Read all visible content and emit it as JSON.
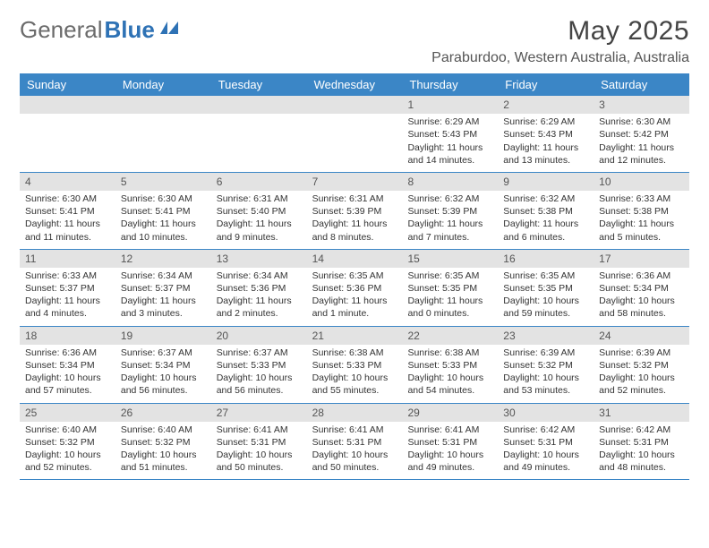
{
  "brand": {
    "textGray": "General",
    "textBlue": "Blue"
  },
  "title": "May 2025",
  "location": "Paraburdoo, Western Australia, Australia",
  "colors": {
    "headerBlue": "#3b86c6",
    "dayBarGray": "#e3e3e3",
    "borderBlue": "#3b86c6",
    "logoBlue": "#2e72b5",
    "logoGray": "#6b6b6b",
    "textDark": "#333333"
  },
  "dayNames": [
    "Sunday",
    "Monday",
    "Tuesday",
    "Wednesday",
    "Thursday",
    "Friday",
    "Saturday"
  ],
  "weeks": [
    [
      {
        "empty": true
      },
      {
        "empty": true
      },
      {
        "empty": true
      },
      {
        "empty": true
      },
      {
        "num": "1",
        "sunrise": "Sunrise: 6:29 AM",
        "sunset": "Sunset: 5:43 PM",
        "daylight": "Daylight: 11 hours and 14 minutes."
      },
      {
        "num": "2",
        "sunrise": "Sunrise: 6:29 AM",
        "sunset": "Sunset: 5:43 PM",
        "daylight": "Daylight: 11 hours and 13 minutes."
      },
      {
        "num": "3",
        "sunrise": "Sunrise: 6:30 AM",
        "sunset": "Sunset: 5:42 PM",
        "daylight": "Daylight: 11 hours and 12 minutes."
      }
    ],
    [
      {
        "num": "4",
        "sunrise": "Sunrise: 6:30 AM",
        "sunset": "Sunset: 5:41 PM",
        "daylight": "Daylight: 11 hours and 11 minutes."
      },
      {
        "num": "5",
        "sunrise": "Sunrise: 6:30 AM",
        "sunset": "Sunset: 5:41 PM",
        "daylight": "Daylight: 11 hours and 10 minutes."
      },
      {
        "num": "6",
        "sunrise": "Sunrise: 6:31 AM",
        "sunset": "Sunset: 5:40 PM",
        "daylight": "Daylight: 11 hours and 9 minutes."
      },
      {
        "num": "7",
        "sunrise": "Sunrise: 6:31 AM",
        "sunset": "Sunset: 5:39 PM",
        "daylight": "Daylight: 11 hours and 8 minutes."
      },
      {
        "num": "8",
        "sunrise": "Sunrise: 6:32 AM",
        "sunset": "Sunset: 5:39 PM",
        "daylight": "Daylight: 11 hours and 7 minutes."
      },
      {
        "num": "9",
        "sunrise": "Sunrise: 6:32 AM",
        "sunset": "Sunset: 5:38 PM",
        "daylight": "Daylight: 11 hours and 6 minutes."
      },
      {
        "num": "10",
        "sunrise": "Sunrise: 6:33 AM",
        "sunset": "Sunset: 5:38 PM",
        "daylight": "Daylight: 11 hours and 5 minutes."
      }
    ],
    [
      {
        "num": "11",
        "sunrise": "Sunrise: 6:33 AM",
        "sunset": "Sunset: 5:37 PM",
        "daylight": "Daylight: 11 hours and 4 minutes."
      },
      {
        "num": "12",
        "sunrise": "Sunrise: 6:34 AM",
        "sunset": "Sunset: 5:37 PM",
        "daylight": "Daylight: 11 hours and 3 minutes."
      },
      {
        "num": "13",
        "sunrise": "Sunrise: 6:34 AM",
        "sunset": "Sunset: 5:36 PM",
        "daylight": "Daylight: 11 hours and 2 minutes."
      },
      {
        "num": "14",
        "sunrise": "Sunrise: 6:35 AM",
        "sunset": "Sunset: 5:36 PM",
        "daylight": "Daylight: 11 hours and 1 minute."
      },
      {
        "num": "15",
        "sunrise": "Sunrise: 6:35 AM",
        "sunset": "Sunset: 5:35 PM",
        "daylight": "Daylight: 11 hours and 0 minutes."
      },
      {
        "num": "16",
        "sunrise": "Sunrise: 6:35 AM",
        "sunset": "Sunset: 5:35 PM",
        "daylight": "Daylight: 10 hours and 59 minutes."
      },
      {
        "num": "17",
        "sunrise": "Sunrise: 6:36 AM",
        "sunset": "Sunset: 5:34 PM",
        "daylight": "Daylight: 10 hours and 58 minutes."
      }
    ],
    [
      {
        "num": "18",
        "sunrise": "Sunrise: 6:36 AM",
        "sunset": "Sunset: 5:34 PM",
        "daylight": "Daylight: 10 hours and 57 minutes."
      },
      {
        "num": "19",
        "sunrise": "Sunrise: 6:37 AM",
        "sunset": "Sunset: 5:34 PM",
        "daylight": "Daylight: 10 hours and 56 minutes."
      },
      {
        "num": "20",
        "sunrise": "Sunrise: 6:37 AM",
        "sunset": "Sunset: 5:33 PM",
        "daylight": "Daylight: 10 hours and 56 minutes."
      },
      {
        "num": "21",
        "sunrise": "Sunrise: 6:38 AM",
        "sunset": "Sunset: 5:33 PM",
        "daylight": "Daylight: 10 hours and 55 minutes."
      },
      {
        "num": "22",
        "sunrise": "Sunrise: 6:38 AM",
        "sunset": "Sunset: 5:33 PM",
        "daylight": "Daylight: 10 hours and 54 minutes."
      },
      {
        "num": "23",
        "sunrise": "Sunrise: 6:39 AM",
        "sunset": "Sunset: 5:32 PM",
        "daylight": "Daylight: 10 hours and 53 minutes."
      },
      {
        "num": "24",
        "sunrise": "Sunrise: 6:39 AM",
        "sunset": "Sunset: 5:32 PM",
        "daylight": "Daylight: 10 hours and 52 minutes."
      }
    ],
    [
      {
        "num": "25",
        "sunrise": "Sunrise: 6:40 AM",
        "sunset": "Sunset: 5:32 PM",
        "daylight": "Daylight: 10 hours and 52 minutes."
      },
      {
        "num": "26",
        "sunrise": "Sunrise: 6:40 AM",
        "sunset": "Sunset: 5:32 PM",
        "daylight": "Daylight: 10 hours and 51 minutes."
      },
      {
        "num": "27",
        "sunrise": "Sunrise: 6:41 AM",
        "sunset": "Sunset: 5:31 PM",
        "daylight": "Daylight: 10 hours and 50 minutes."
      },
      {
        "num": "28",
        "sunrise": "Sunrise: 6:41 AM",
        "sunset": "Sunset: 5:31 PM",
        "daylight": "Daylight: 10 hours and 50 minutes."
      },
      {
        "num": "29",
        "sunrise": "Sunrise: 6:41 AM",
        "sunset": "Sunset: 5:31 PM",
        "daylight": "Daylight: 10 hours and 49 minutes."
      },
      {
        "num": "30",
        "sunrise": "Sunrise: 6:42 AM",
        "sunset": "Sunset: 5:31 PM",
        "daylight": "Daylight: 10 hours and 49 minutes."
      },
      {
        "num": "31",
        "sunrise": "Sunrise: 6:42 AM",
        "sunset": "Sunset: 5:31 PM",
        "daylight": "Daylight: 10 hours and 48 minutes."
      }
    ]
  ]
}
